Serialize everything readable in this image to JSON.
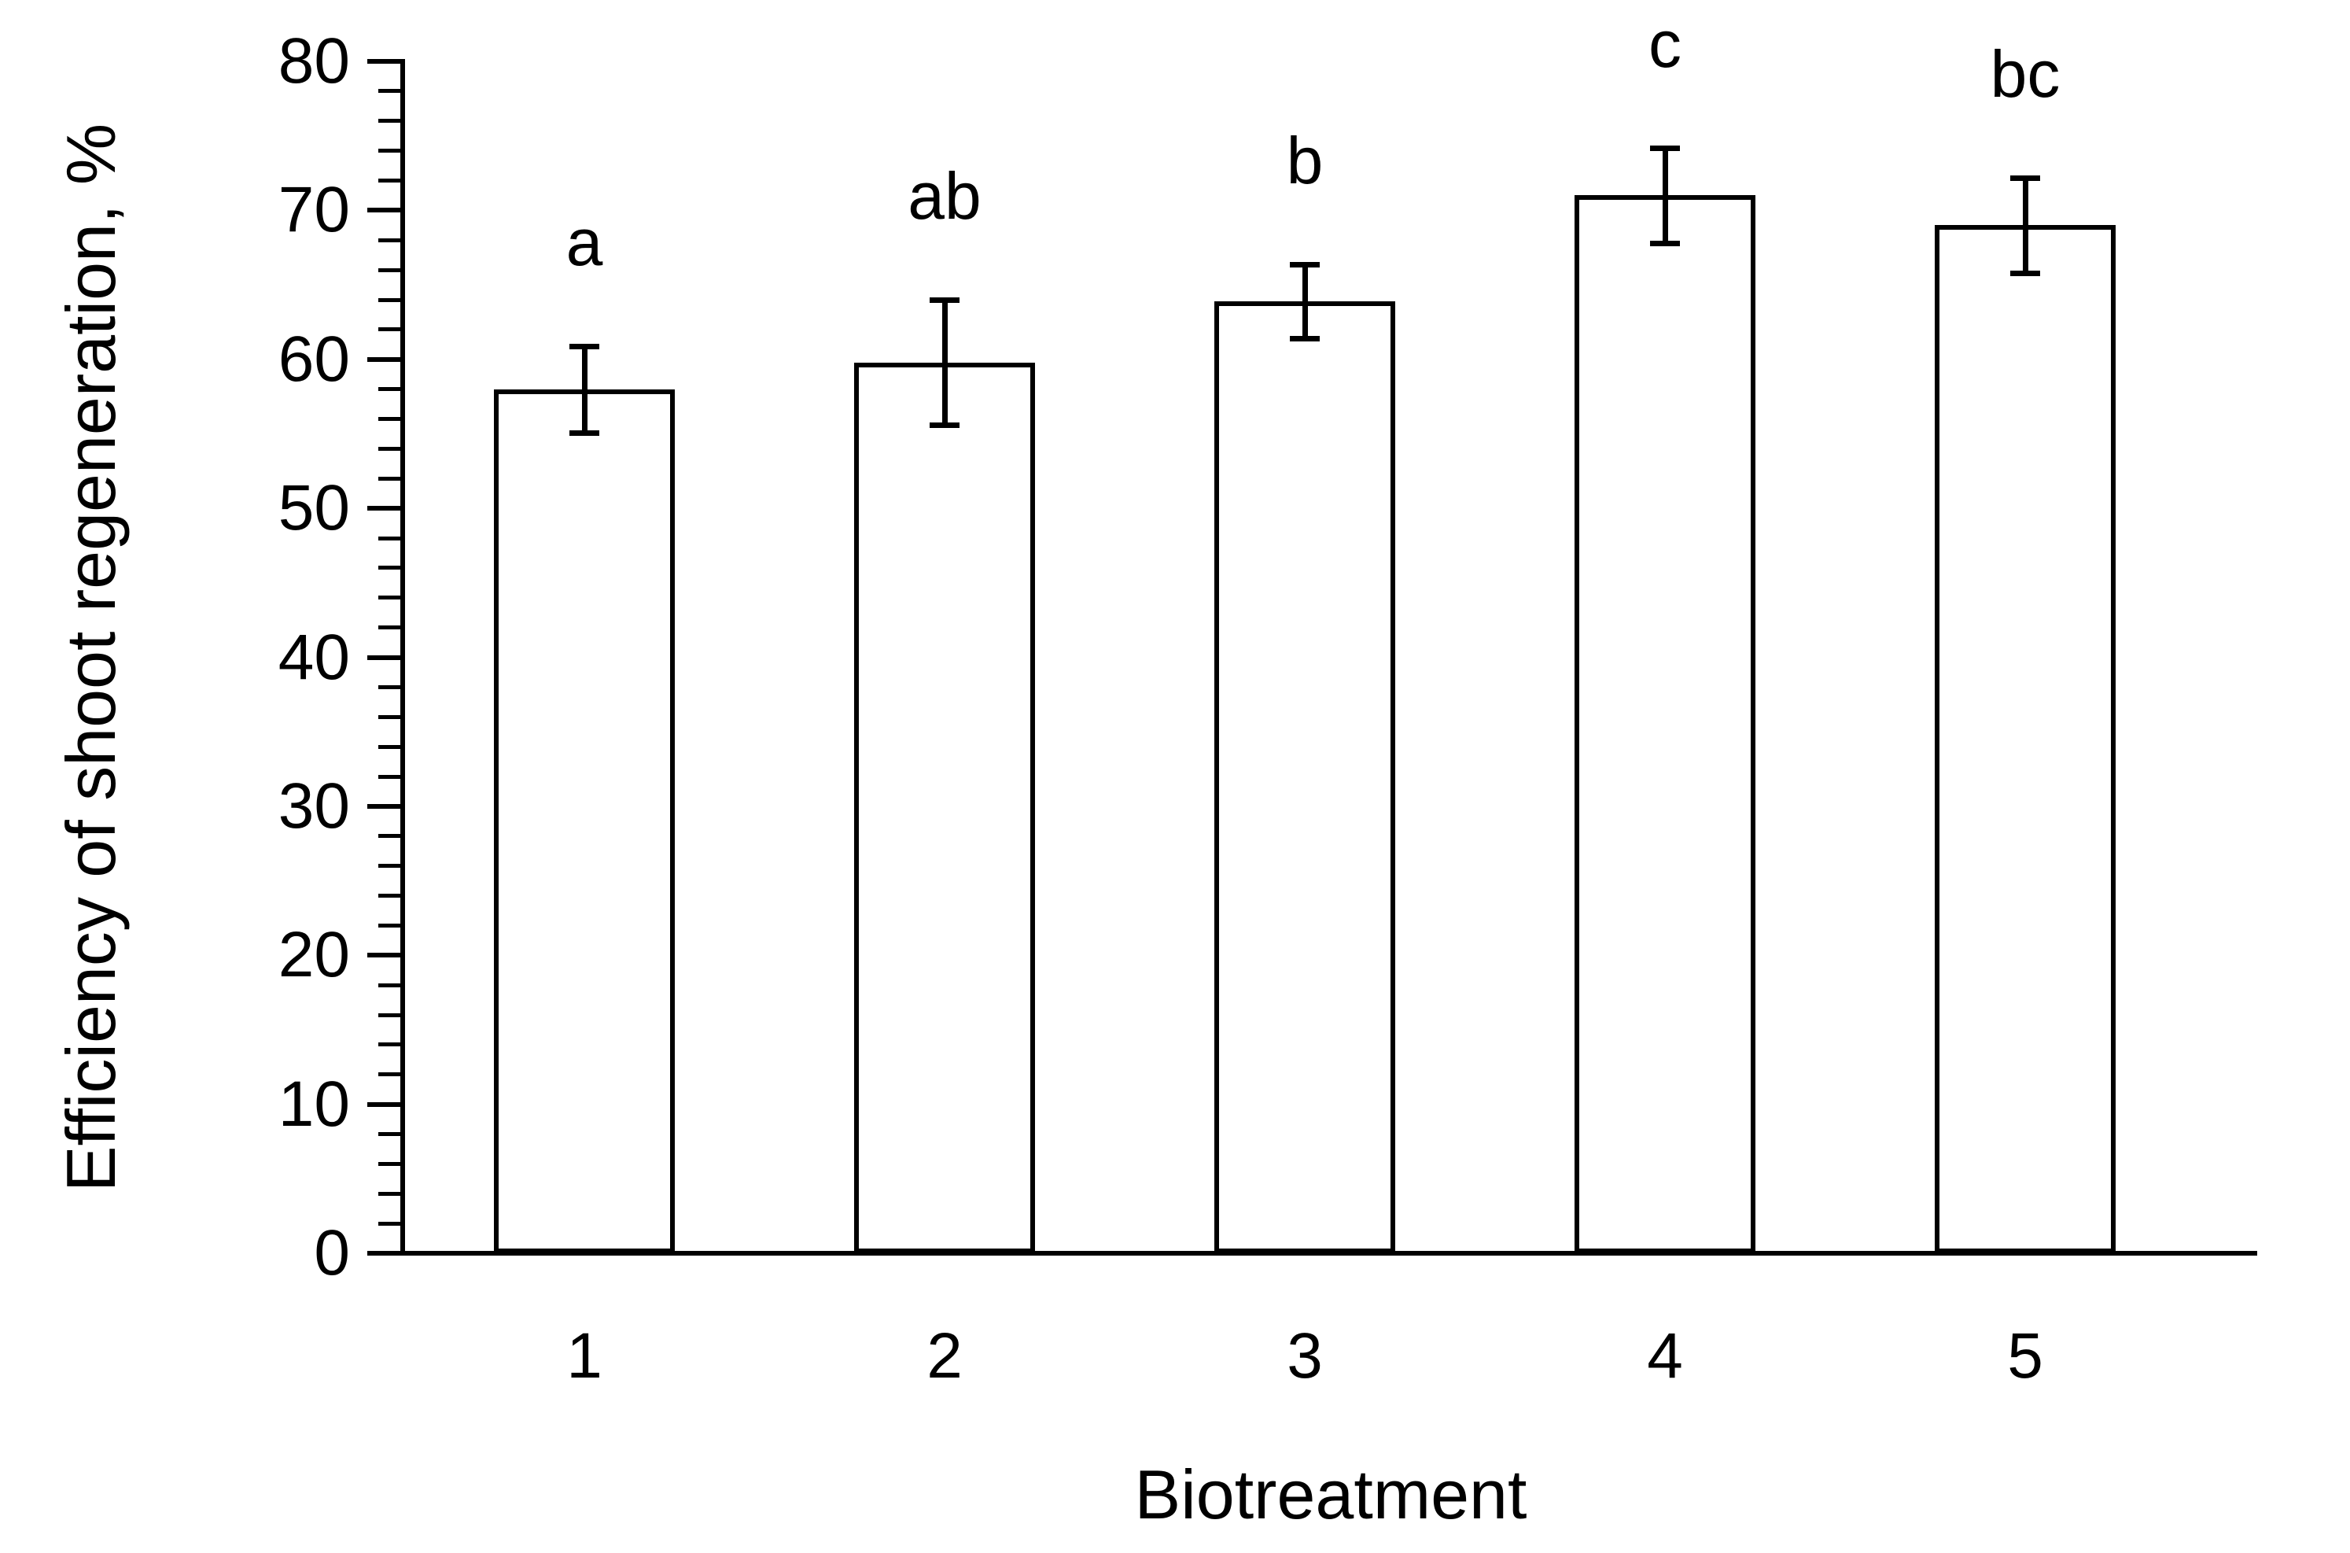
{
  "chart_data": {
    "type": "bar",
    "title": "",
    "xlabel": "Biotreatment",
    "ylabel": "Efficiency of shoot regeneration, %",
    "categories": [
      "1",
      "2",
      "3",
      "4",
      "5"
    ],
    "series": [
      {
        "name": "Efficiency of shoot regeneration",
        "values": [
          58.0,
          59.8,
          63.9,
          71.0,
          69.0
        ],
        "error_bars_plus": [
          2.9,
          4.2,
          2.5,
          3.2,
          3.2
        ],
        "error_bars_minus": [
          2.9,
          4.2,
          2.5,
          3.2,
          3.2
        ],
        "significance_letters": [
          "a",
          "ab",
          "b",
          "c",
          "bc"
        ]
      }
    ],
    "ylim": [
      0,
      80
    ],
    "y_major_tick_step": 10,
    "y_minor_tick_step": 2,
    "y_tick_labels": [
      "0",
      "10",
      "20",
      "30",
      "40",
      "50",
      "60",
      "70",
      "80"
    ],
    "grid": "off",
    "legend": "none",
    "bar_fill": "#ffffff",
    "bar_border_color": "#000000",
    "error_bar_color": "#000000",
    "axis_color": "#000000",
    "text_color": "#000000",
    "background": "#ffffff"
  }
}
